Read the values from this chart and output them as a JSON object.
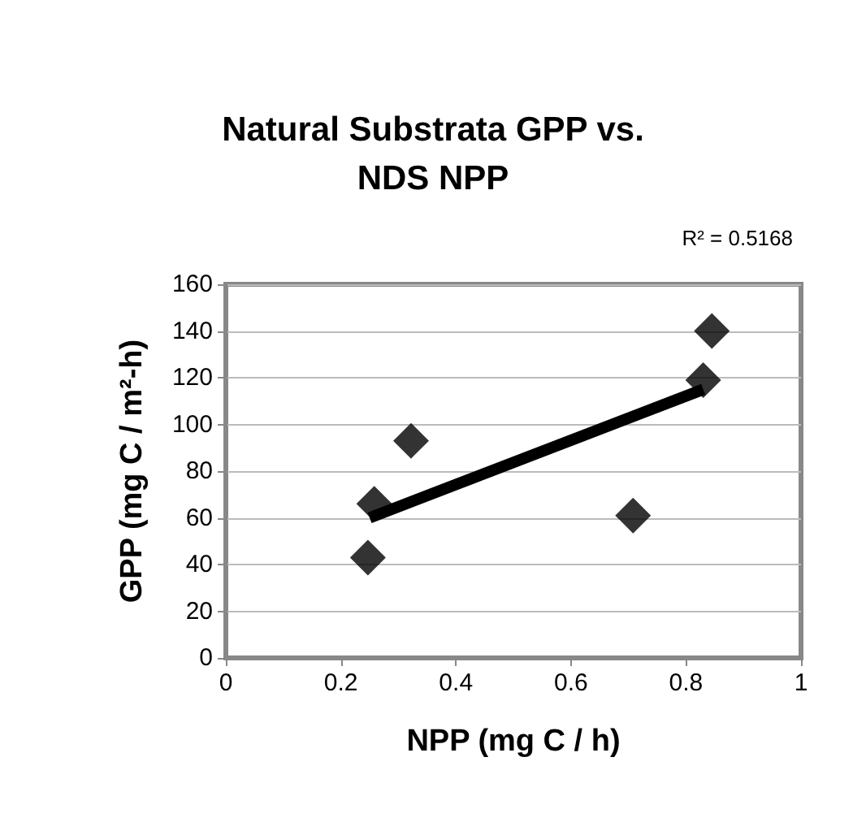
{
  "chart_data": {
    "type": "scatter",
    "title": "Natural Substrata GPP vs.\nNDS NPP",
    "xlabel": "NPP (mg C / h)",
    "ylabel": "GPP (mg C / m²-h)",
    "annotations": [
      "R² = 0.5168"
    ],
    "series": [
      {
        "color": "#000000",
        "marker": "diamond",
        "x": [
          0.247,
          0.258,
          0.322,
          0.708,
          0.83,
          0.845
        ],
        "values": [
          43,
          66,
          93,
          61,
          119,
          140
        ]
      },
      {
        "type": "line",
        "color": "#000000",
        "marker": "none",
        "x": [
          0.25,
          0.83
        ],
        "values": [
          60,
          115
        ]
      }
    ],
    "xlim": [
      0,
      1
    ],
    "xticks": [
      0,
      0.2,
      0.4,
      0.6,
      0.8,
      1
    ],
    "ylim": [
      0,
      160
    ],
    "yticks": [
      0,
      20,
      40,
      60,
      80,
      100,
      120,
      140,
      160
    ],
    "grid": "y"
  }
}
